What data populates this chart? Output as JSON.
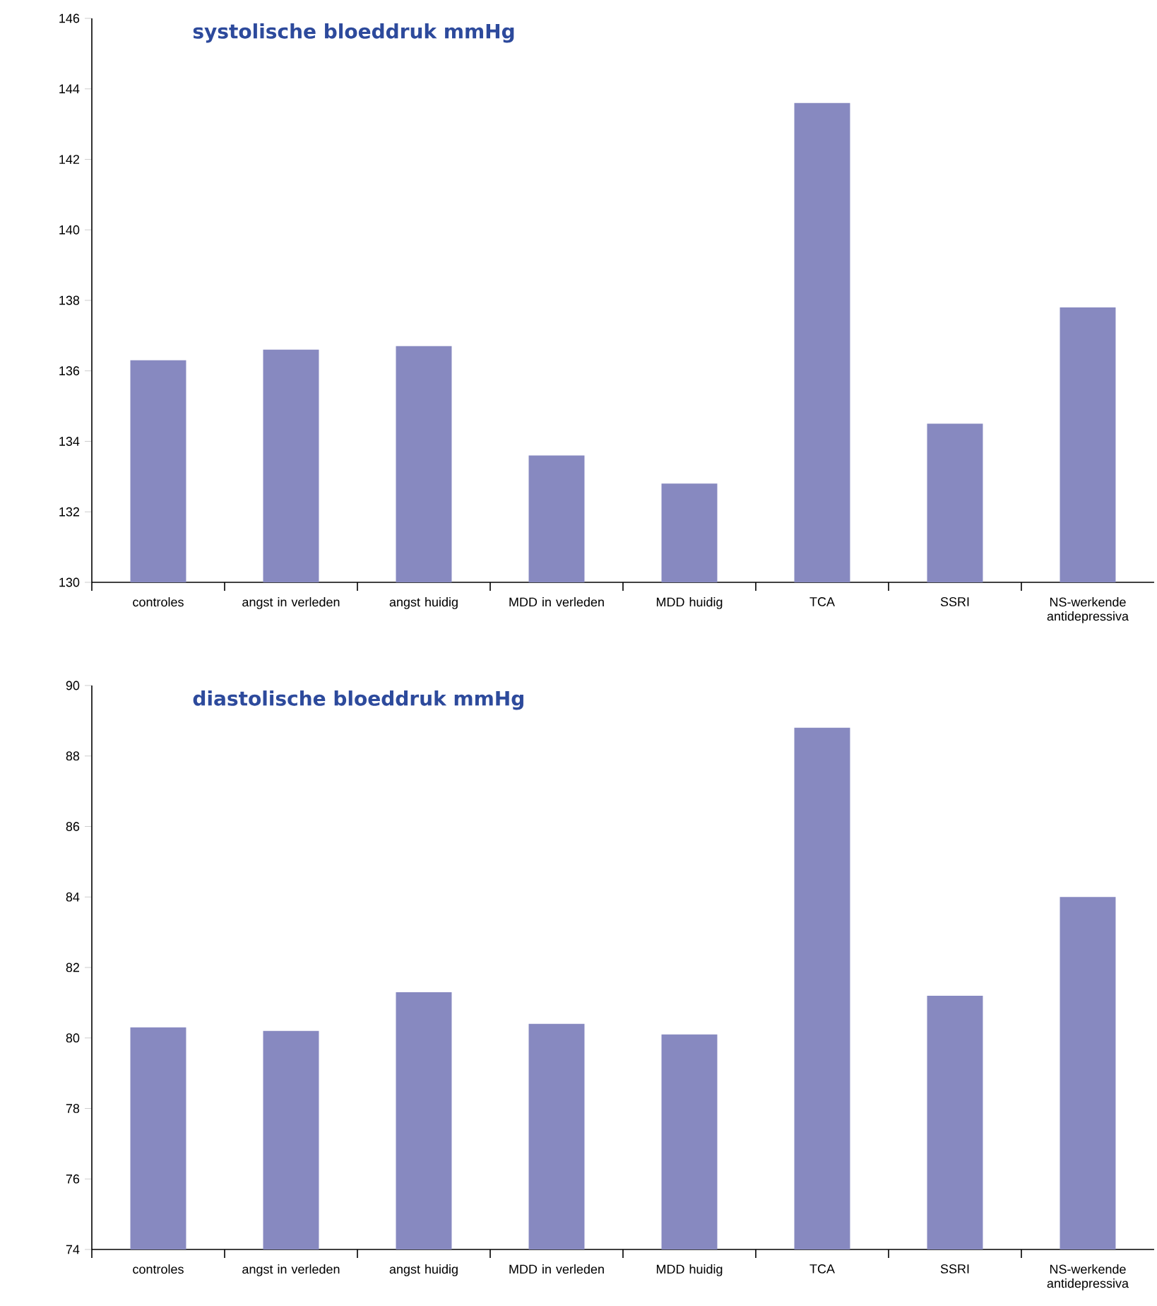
{
  "chart_data": [
    {
      "type": "bar",
      "title": "systolische bloeddruk mmHg",
      "categories": [
        "controles",
        "angst in verleden",
        "angst huidig",
        "MDD in verleden",
        "MDD huidig",
        "TCA",
        "SSRI",
        "NS-werkende antidepressiva"
      ],
      "values": [
        136.3,
        136.6,
        136.7,
        133.6,
        132.8,
        143.6,
        134.5,
        137.8
      ],
      "color": "#8789c0",
      "ylim": [
        130,
        146
      ],
      "yticks": [
        130,
        132,
        134,
        136,
        138,
        140,
        142,
        144,
        146
      ]
    },
    {
      "type": "bar",
      "title": "diastolische bloeddruk mmHg",
      "categories": [
        "controles",
        "angst in verleden",
        "angst huidig",
        "MDD in verleden",
        "MDD huidig",
        "TCA",
        "SSRI",
        "NS-werkende antidepressiva"
      ],
      "values": [
        80.3,
        80.2,
        81.3,
        80.4,
        80.1,
        88.8,
        81.2,
        84.0
      ],
      "color": "#8789c0",
      "ylim": [
        74,
        90
      ],
      "yticks": [
        74,
        76,
        78,
        80,
        82,
        84,
        86,
        88,
        90
      ]
    }
  ]
}
